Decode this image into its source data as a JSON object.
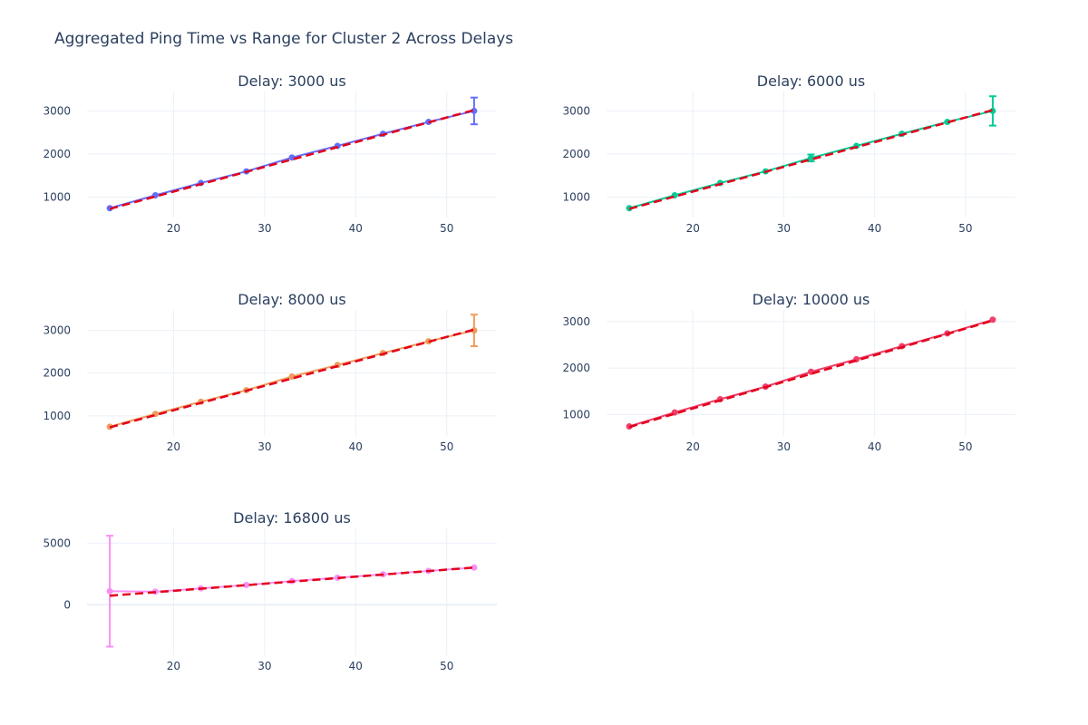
{
  "title": "Aggregated Ping Time vs Range for Cluster 2 Across Delays",
  "fit_color": "#e3001b",
  "chart_data": [
    {
      "type": "line",
      "title": "Delay: 3000 us",
      "color": "#636efa",
      "x": [
        13,
        18,
        23,
        28,
        33,
        38,
        43,
        48,
        53
      ],
      "y": [
        745,
        1045,
        1330,
        1600,
        1920,
        2190,
        2470,
        2745,
        3000
      ],
      "error": [
        0,
        0,
        0,
        0,
        0,
        0,
        0,
        0,
        310
      ],
      "fit": {
        "x": [
          13,
          53
        ],
        "y": [
          730,
          3020
        ]
      },
      "xlim": [
        10.5,
        55.5
      ],
      "ylim": [
        530,
        3450
      ],
      "xticks": [
        20,
        30,
        40,
        50
      ],
      "yticks": [
        1000,
        2000,
        3000
      ]
    },
    {
      "type": "line",
      "title": "Delay: 6000 us",
      "color": "#00cc96",
      "x": [
        13,
        18,
        23,
        28,
        33,
        38,
        43,
        48,
        53
      ],
      "y": [
        745,
        1045,
        1330,
        1600,
        1910,
        2190,
        2470,
        2745,
        3000
      ],
      "error": [
        0,
        0,
        0,
        0,
        80,
        0,
        0,
        0,
        340
      ],
      "fit": {
        "x": [
          13,
          53
        ],
        "y": [
          730,
          3020
        ]
      },
      "xlim": [
        10.5,
        55.5
      ],
      "ylim": [
        530,
        3450
      ],
      "xticks": [
        20,
        30,
        40,
        50
      ],
      "yticks": [
        1000,
        2000,
        3000
      ]
    },
    {
      "type": "line",
      "title": "Delay: 8000 us",
      "color": "#ef9c5b",
      "x": [
        13,
        18,
        23,
        28,
        33,
        38,
        43,
        48,
        53
      ],
      "y": [
        745,
        1045,
        1330,
        1600,
        1920,
        2190,
        2470,
        2745,
        3000
      ],
      "error": [
        0,
        0,
        0,
        0,
        0,
        0,
        0,
        0,
        370
      ],
      "fit": {
        "x": [
          13,
          53
        ],
        "y": [
          730,
          3020
        ]
      },
      "xlim": [
        10.5,
        55.5
      ],
      "ylim": [
        530,
        3480
      ],
      "xticks": [
        20,
        30,
        40,
        50
      ],
      "yticks": [
        1000,
        2000,
        3000
      ]
    },
    {
      "type": "line",
      "title": "Delay: 10000 us",
      "color": "#ef3f6b",
      "x": [
        13,
        18,
        23,
        28,
        33,
        38,
        43,
        48,
        53
      ],
      "y": [
        745,
        1045,
        1330,
        1600,
        1920,
        2190,
        2470,
        2745,
        3040
      ],
      "error": [
        0,
        0,
        0,
        0,
        0,
        0,
        0,
        0,
        0
      ],
      "fit": {
        "x": [
          13,
          53
        ],
        "y": [
          730,
          3020
        ]
      },
      "xlim": [
        10.5,
        55.5
      ],
      "ylim": [
        540,
        3250
      ],
      "xticks": [
        20,
        30,
        40,
        50
      ],
      "yticks": [
        1000,
        2000,
        3000
      ]
    },
    {
      "type": "line",
      "title": "Delay: 16800 us",
      "color": "#f98ff5",
      "x": [
        13,
        18,
        23,
        28,
        33,
        38,
        43,
        48,
        53
      ],
      "y": [
        1100,
        1060,
        1330,
        1600,
        1920,
        2190,
        2470,
        2745,
        3020
      ],
      "error": [
        4500,
        0,
        0,
        0,
        0,
        0,
        0,
        0,
        0
      ],
      "fit": {
        "x": [
          13,
          53
        ],
        "y": [
          730,
          3020
        ]
      },
      "xlim": [
        10.5,
        55.5
      ],
      "ylim": [
        -4100,
        6200
      ],
      "xticks": [
        20,
        30,
        40,
        50
      ],
      "yticks": [
        0,
        5000
      ]
    }
  ]
}
